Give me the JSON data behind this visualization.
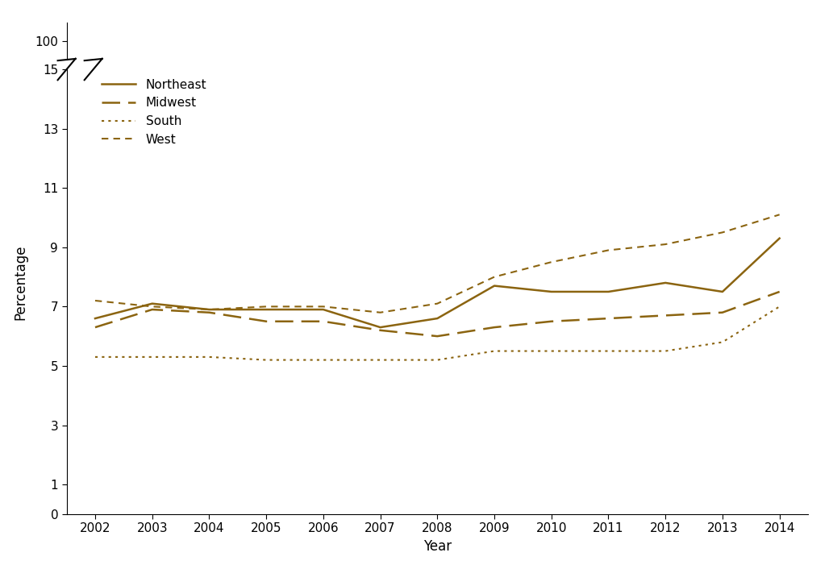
{
  "years": [
    2002,
    2003,
    2004,
    2005,
    2006,
    2007,
    2008,
    2009,
    2010,
    2011,
    2012,
    2013,
    2014
  ],
  "northeast": [
    6.6,
    7.1,
    6.9,
    6.9,
    6.9,
    6.3,
    6.6,
    7.7,
    7.5,
    7.5,
    7.8,
    7.5,
    9.3
  ],
  "midwest": [
    6.3,
    6.9,
    6.8,
    6.5,
    6.5,
    6.2,
    6.0,
    6.3,
    6.5,
    6.6,
    6.7,
    6.8,
    7.5
  ],
  "south": [
    5.3,
    5.3,
    5.3,
    5.2,
    5.2,
    5.2,
    5.2,
    5.5,
    5.5,
    5.5,
    5.5,
    5.8,
    7.0
  ],
  "west": [
    7.2,
    7.0,
    6.9,
    7.0,
    7.0,
    6.8,
    7.1,
    8.0,
    8.5,
    8.9,
    9.1,
    9.5,
    10.1
  ],
  "color": "#8B6410",
  "ylabel": "Percentage",
  "xlabel": "Year",
  "bg_color": "#ffffff",
  "xlim": [
    2001.5,
    2014.5
  ],
  "lower_ylim": [
    0,
    15
  ],
  "upper_ylim": [
    95,
    105
  ],
  "lower_yticks": [
    0,
    1,
    3,
    5,
    7,
    9,
    11,
    13,
    15
  ],
  "lower_ytick_labels": [
    "0",
    "1",
    "3",
    "5",
    "7",
    "9",
    "11",
    "13",
    "15"
  ],
  "upper_yticks": [
    100
  ],
  "upper_ytick_labels": [
    "100"
  ],
  "legend_labels": [
    "Northeast",
    "Midwest",
    "South",
    "West"
  ]
}
